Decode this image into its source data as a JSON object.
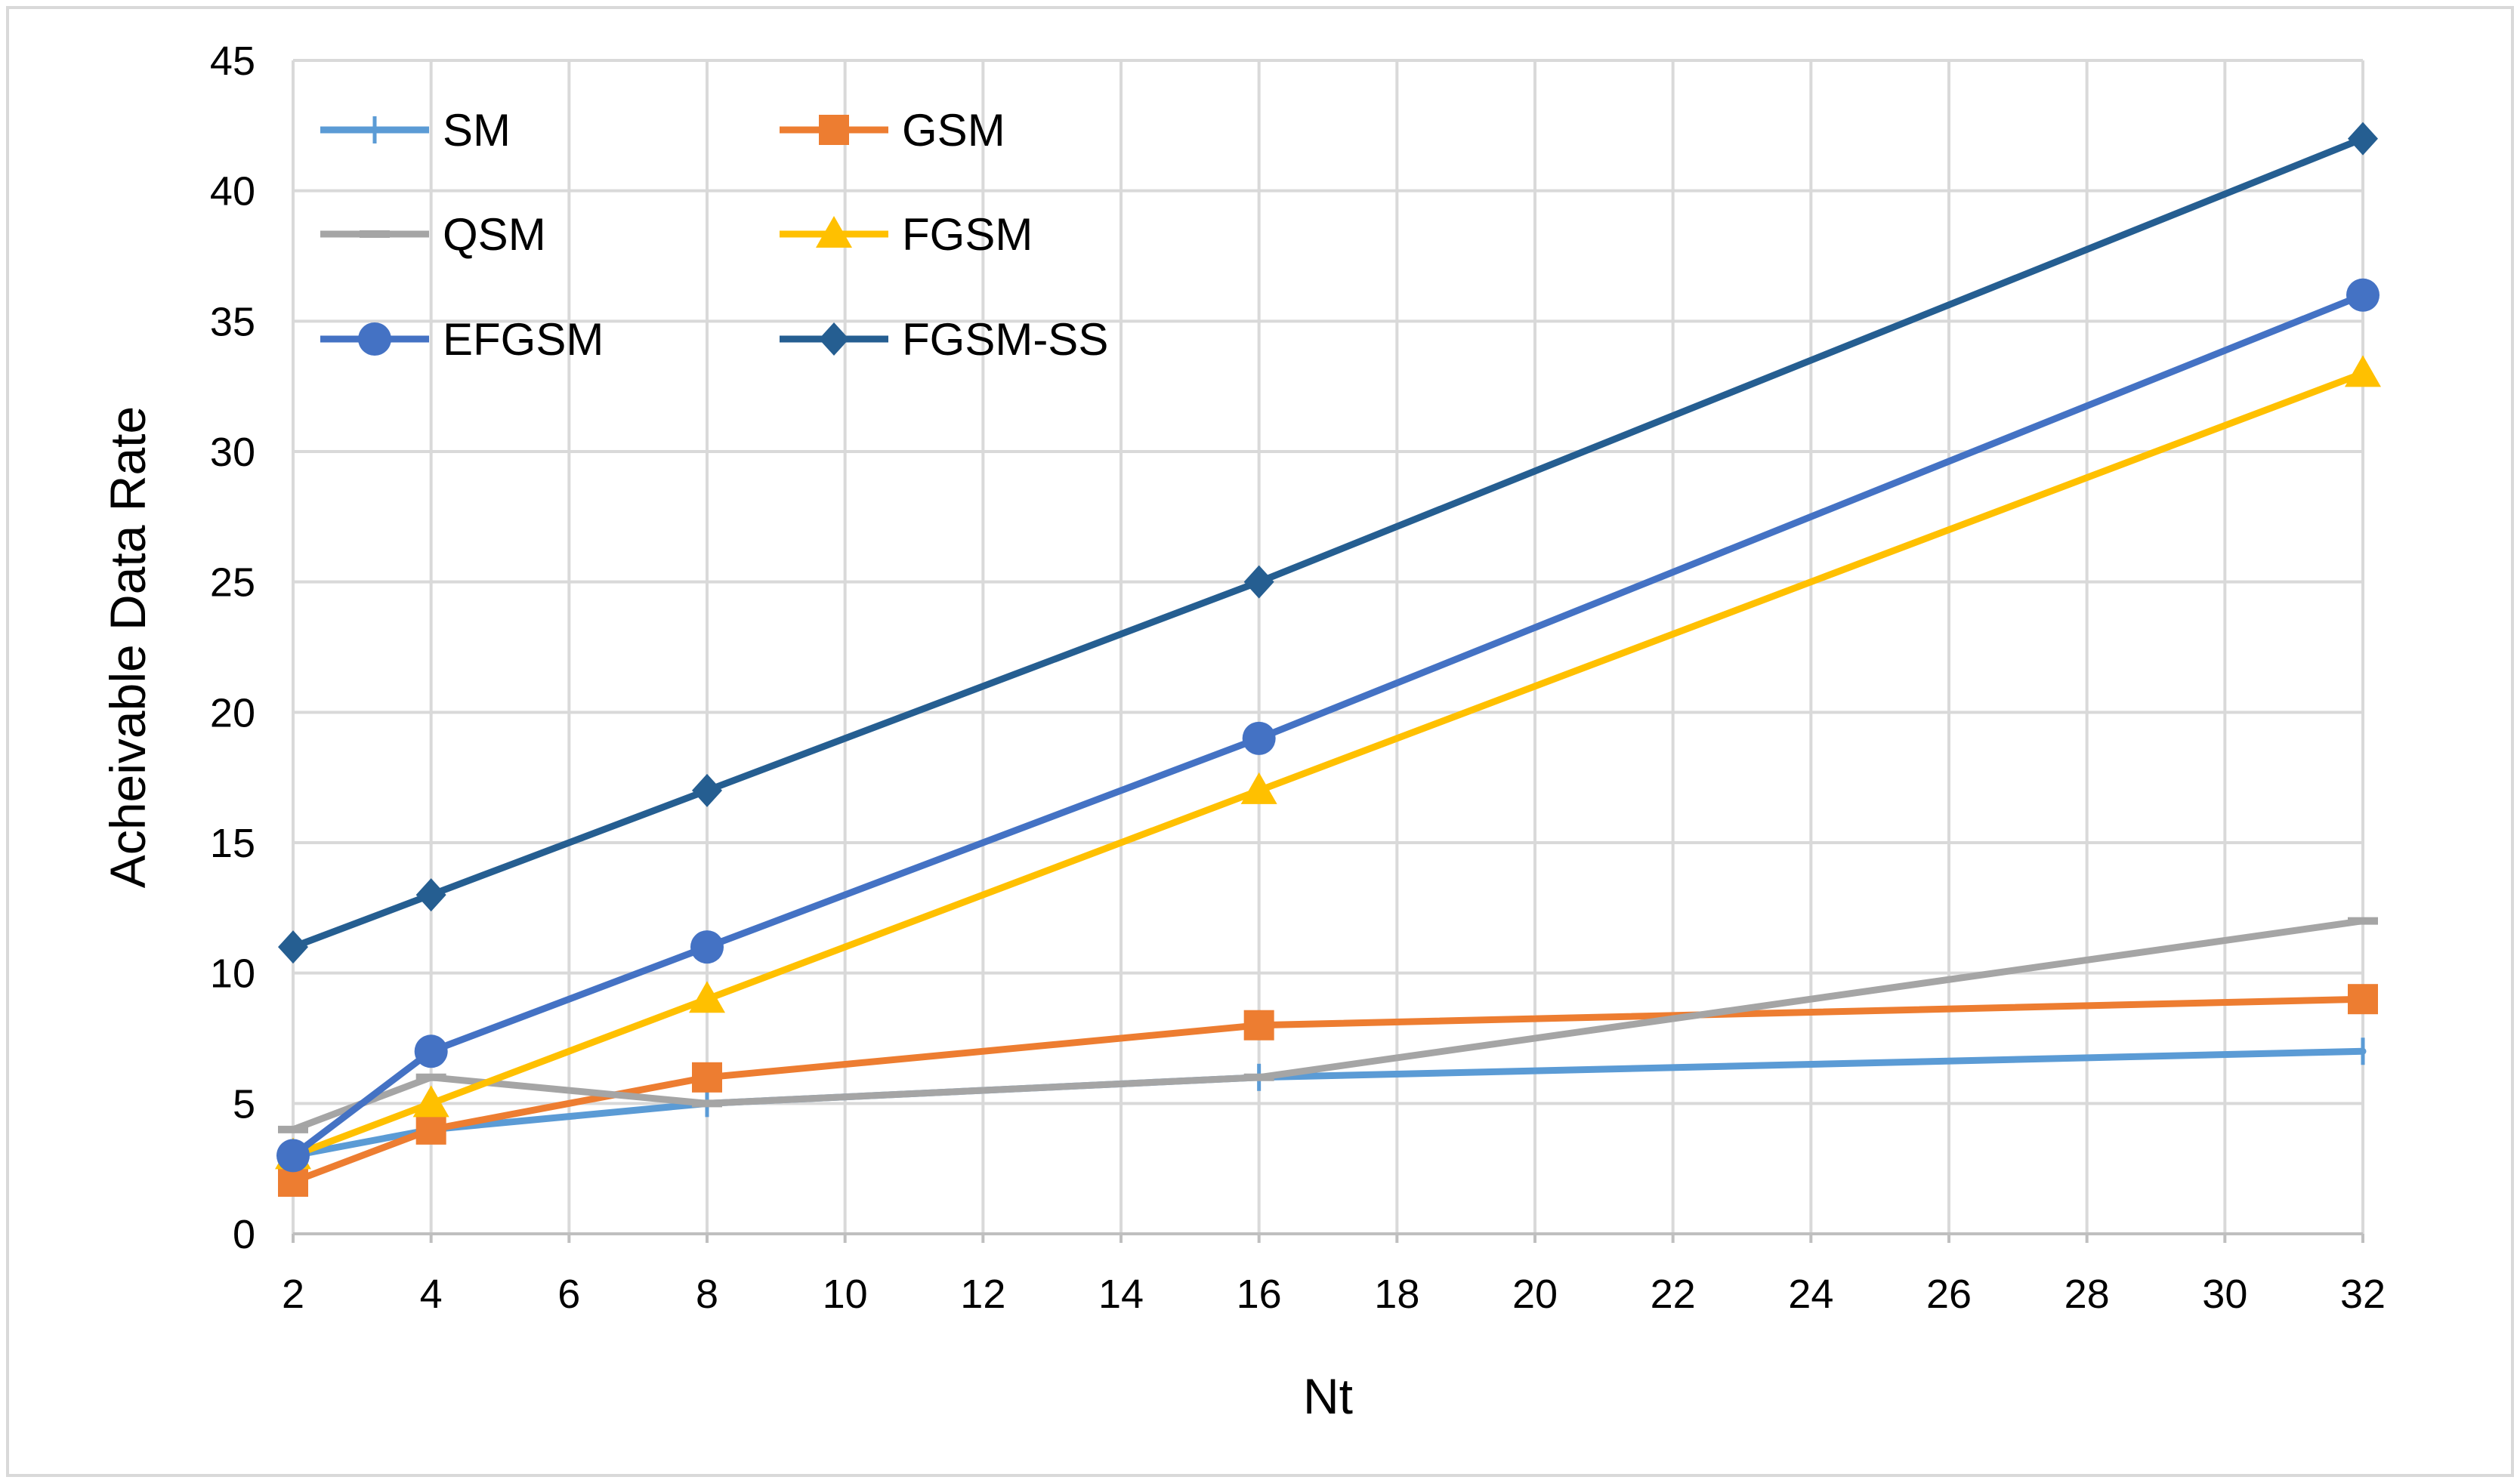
{
  "chart_data": {
    "type": "line",
    "title": "",
    "xlabel": "Nt",
    "ylabel": "Acheivable Data Rate",
    "xlim": [
      2,
      32
    ],
    "ylim": [
      0,
      45
    ],
    "xticks": [
      2,
      4,
      6,
      8,
      10,
      12,
      14,
      16,
      18,
      20,
      22,
      24,
      26,
      28,
      30,
      32
    ],
    "yticks": [
      0,
      5,
      10,
      15,
      20,
      25,
      30,
      35,
      40,
      45
    ],
    "grid": true,
    "legend_position": "top-left",
    "x": [
      2,
      4,
      8,
      16,
      32
    ],
    "series": [
      {
        "name": "SM",
        "values": [
          3,
          4,
          5,
          6,
          7
        ],
        "color": "#5B9BD5",
        "marker": "plus"
      },
      {
        "name": "GSM",
        "values": [
          2,
          4,
          6,
          8,
          9
        ],
        "color": "#ED7D31",
        "marker": "square"
      },
      {
        "name": "QSM",
        "values": [
          4,
          6,
          5,
          6,
          12
        ],
        "color": "#A5A5A5",
        "marker": "dash"
      },
      {
        "name": "FGSM",
        "values": [
          3,
          5,
          9,
          17,
          33
        ],
        "color": "#FFC000",
        "marker": "triangle"
      },
      {
        "name": "EFGSM",
        "values": [
          3,
          7,
          11,
          19,
          36
        ],
        "color": "#4472C4",
        "marker": "circle"
      },
      {
        "name": "FGSM-SS",
        "values": [
          11,
          13,
          17,
          25,
          42
        ],
        "color": "#255E91",
        "marker": "diamond"
      }
    ]
  }
}
